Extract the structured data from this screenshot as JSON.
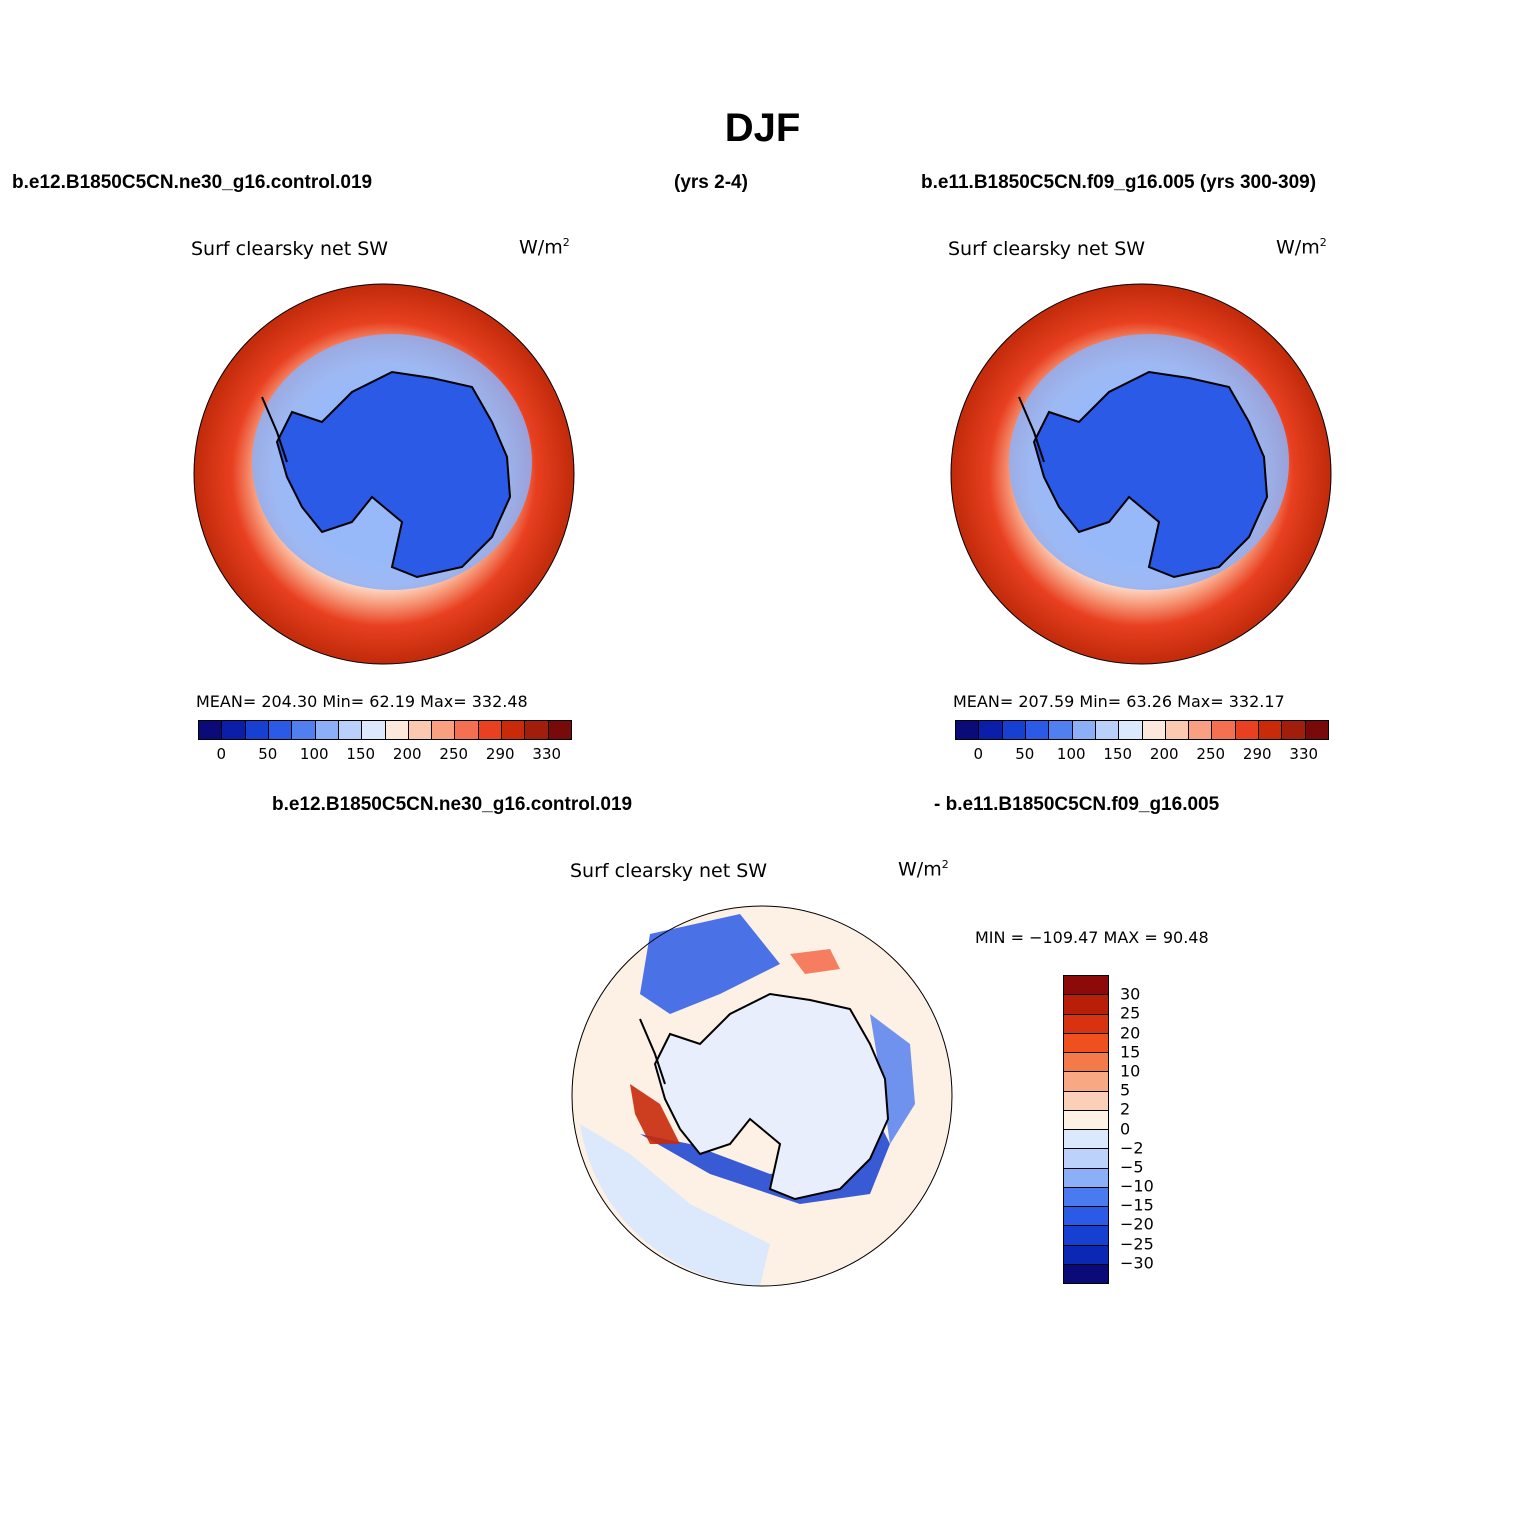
{
  "title": "DJF",
  "top_left": {
    "case_name": "b.e12.B1850C5CN.ne30_g16.control.019",
    "years": "(yrs 2-4)",
    "variable": "Surf clearsky net SW",
    "units": "W/m",
    "units_exp": "2",
    "stats": "MEAN= 204.30   Min=   62.19   Max= 332.48"
  },
  "top_right": {
    "case_name": "b.e11.B1850C5CN.f09_g16.005 (yrs 300-309)",
    "variable": "Surf clearsky net SW",
    "units": "W/m",
    "units_exp": "2",
    "stats": "MEAN= 207.59   Min=   63.26   Max= 332.17"
  },
  "bottom": {
    "case_a": "b.e12.B1850C5CN.ne30_g16.control.019",
    "case_b": "- b.e11.B1850C5CN.f09_g16.005",
    "variable": "Surf clearsky net SW",
    "units": "W/m",
    "units_exp": "2",
    "stats": "MIN = −109.47 MAX =   90.48"
  },
  "colorbar_top": {
    "colors": [
      "#0a0a78",
      "#0a1eaa",
      "#1640d2",
      "#2a5ae6",
      "#5080f0",
      "#8cb0f8",
      "#b8d0fa",
      "#dce8fc",
      "#fde8dc",
      "#fbc8b0",
      "#f8a080",
      "#f57050",
      "#e84020",
      "#c82a0a",
      "#a01e0a",
      "#780a0a"
    ],
    "labels": [
      "0",
      "50",
      "100",
      "150",
      "200",
      "250",
      "290",
      "330"
    ]
  },
  "colorbar_diff": {
    "colors": [
      "#8c0a0a",
      "#b81e0a",
      "#d83210",
      "#f0501e",
      "#f57a4a",
      "#f8a882",
      "#fbd0b8",
      "#fdf0e4",
      "#dce8fc",
      "#bcd2fa",
      "#8cb0f8",
      "#4a7aef",
      "#2a5ae6",
      "#1640d2",
      "#0a28b4",
      "#0a0a78"
    ],
    "labels": [
      "30",
      "25",
      "20",
      "15",
      "10",
      "5",
      "2",
      "0",
      "−2",
      "−5",
      "−10",
      "−15",
      "−20",
      "−25",
      "−30"
    ]
  }
}
